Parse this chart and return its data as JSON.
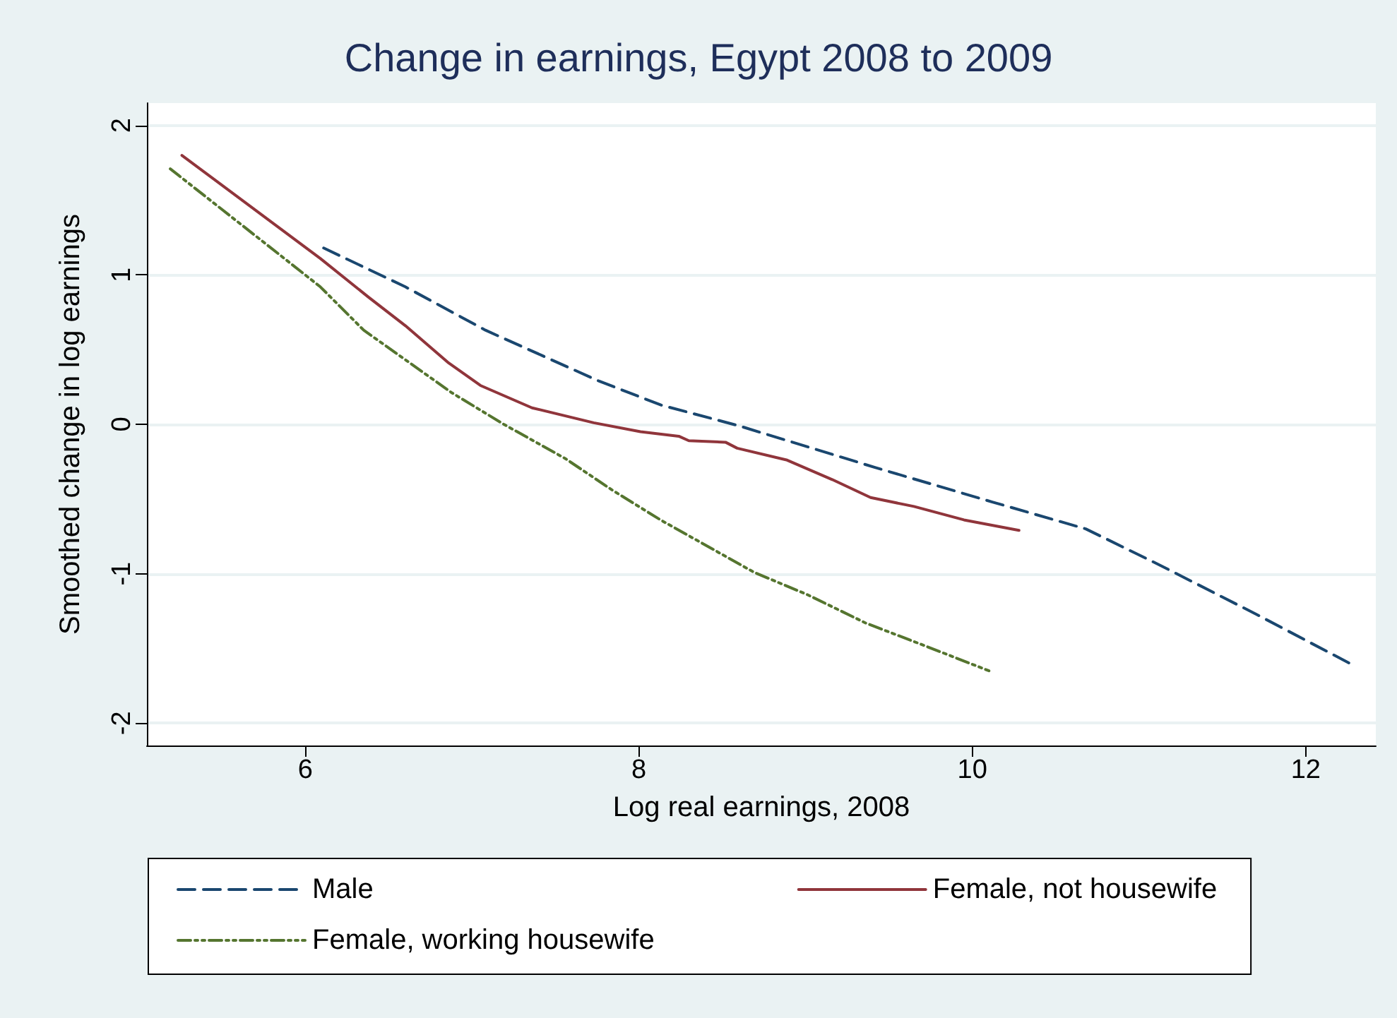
{
  "chart_data": {
    "type": "line",
    "title": "Change in earnings, Egypt 2008 to 2009",
    "xlabel": "Log real earnings, 2008",
    "ylabel": "Smoothed change in log earnings",
    "xlim": [
      5.05,
      12.42
    ],
    "ylim": [
      -2.15,
      2.15
    ],
    "xticks": [
      6,
      8,
      10,
      12
    ],
    "yticks": [
      -2,
      -1,
      0,
      1,
      2
    ],
    "grid": "y",
    "legend": "bottom",
    "marker": "none",
    "series": [
      {
        "name": "Male",
        "color": "#1a476f",
        "line_style": "dashed",
        "x": [
          6.11,
          6.6,
          7.08,
          7.42,
          7.76,
          8.13,
          8.6,
          9.42,
          10.12,
          10.68,
          11.12,
          11.7,
          12.28
        ],
        "values": [
          1.18,
          0.92,
          0.63,
          0.46,
          0.29,
          0.13,
          -0.01,
          -0.29,
          -0.52,
          -0.7,
          -0.94,
          -1.27,
          -1.61
        ]
      },
      {
        "name": "Female, not housewife",
        "color": "#90353b",
        "line_style": "solid",
        "x": [
          5.26,
          6.09,
          6.38,
          6.6,
          6.86,
          7.05,
          7.36,
          7.73,
          8.01,
          8.24,
          8.3,
          8.52,
          8.59,
          8.89,
          9.16,
          9.39,
          9.65,
          9.95,
          10.28
        ],
        "values": [
          1.8,
          1.11,
          0.85,
          0.66,
          0.41,
          0.26,
          0.11,
          0.01,
          -0.05,
          -0.08,
          -0.11,
          -0.12,
          -0.16,
          -0.24,
          -0.37,
          -0.49,
          -0.55,
          -0.64,
          -0.71
        ]
      },
      {
        "name": "Female, working housewife",
        "color": "#55752f",
        "line_style": "dotted",
        "x": [
          5.19,
          5.84,
          6.09,
          6.35,
          6.88,
          7.19,
          7.56,
          7.84,
          8.13,
          8.69,
          9.01,
          9.36,
          9.71,
          10.1
        ],
        "values": [
          1.71,
          1.14,
          0.92,
          0.63,
          0.21,
          0.0,
          -0.23,
          -0.44,
          -0.64,
          -0.99,
          -1.14,
          -1.33,
          -1.48,
          -1.65
        ]
      }
    ]
  }
}
